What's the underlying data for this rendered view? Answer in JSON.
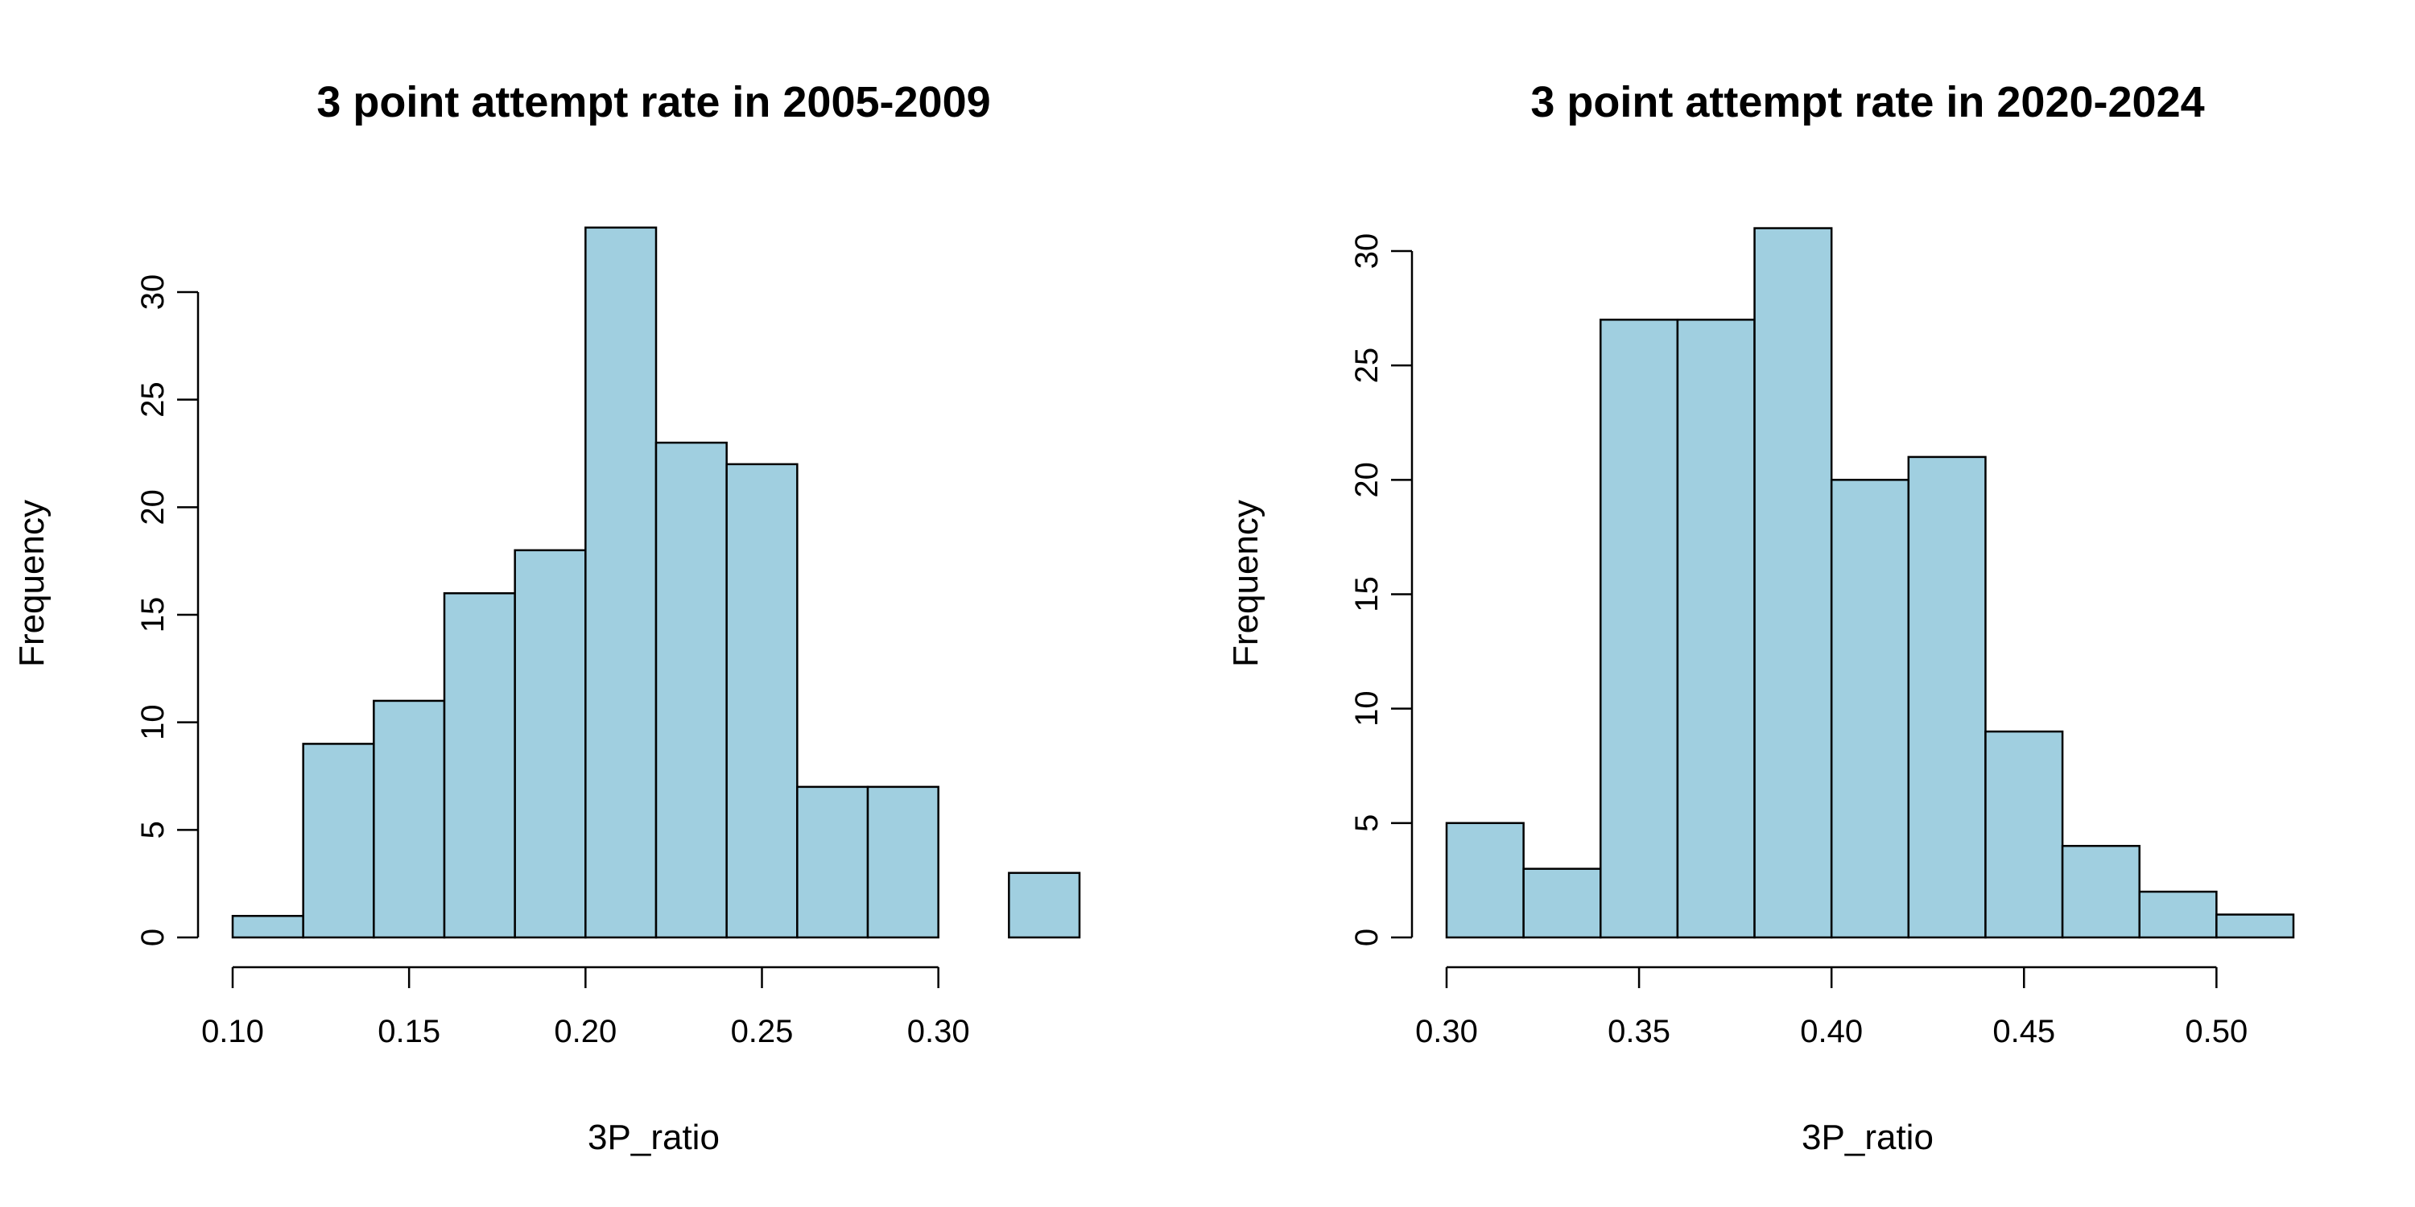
{
  "chart_data": [
    {
      "type": "histogram",
      "title": "3 point attempt rate in 2005-2009",
      "xlabel": "3P_ratio",
      "ylabel": "Frequency",
      "bar_color": "#A0CFE0",
      "bins": [
        {
          "start": 0.1,
          "end": 0.12,
          "count": 1
        },
        {
          "start": 0.12,
          "end": 0.14,
          "count": 9
        },
        {
          "start": 0.14,
          "end": 0.16,
          "count": 11
        },
        {
          "start": 0.16,
          "end": 0.18,
          "count": 16
        },
        {
          "start": 0.18,
          "end": 0.2,
          "count": 18
        },
        {
          "start": 0.2,
          "end": 0.22,
          "count": 33
        },
        {
          "start": 0.22,
          "end": 0.24,
          "count": 23
        },
        {
          "start": 0.24,
          "end": 0.26,
          "count": 22
        },
        {
          "start": 0.26,
          "end": 0.28,
          "count": 7
        },
        {
          "start": 0.28,
          "end": 0.3,
          "count": 7
        },
        {
          "start": 0.3,
          "end": 0.32,
          "count": 0
        },
        {
          "start": 0.32,
          "end": 0.34,
          "count": 3
        }
      ],
      "xlim": [
        0.1,
        0.34
      ],
      "ylim": [
        0,
        33
      ],
      "xticks": [
        0.1,
        0.15,
        0.2,
        0.25,
        0.3
      ],
      "xtick_labels": [
        "0.10",
        "0.15",
        "0.20",
        "0.25",
        "0.30"
      ],
      "yticks": [
        0,
        5,
        10,
        15,
        20,
        25,
        30
      ],
      "ytick_labels": [
        "0",
        "5",
        "10",
        "15",
        "20",
        "25",
        "30"
      ],
      "grid": false,
      "legend": "none"
    },
    {
      "type": "histogram",
      "title": "3 point attempt rate in 2020-2024",
      "xlabel": "3P_ratio",
      "ylabel": "Frequency",
      "bar_color": "#A0CFE0",
      "bins": [
        {
          "start": 0.3,
          "end": 0.32,
          "count": 5
        },
        {
          "start": 0.32,
          "end": 0.34,
          "count": 3
        },
        {
          "start": 0.34,
          "end": 0.36,
          "count": 27
        },
        {
          "start": 0.36,
          "end": 0.38,
          "count": 27
        },
        {
          "start": 0.38,
          "end": 0.4,
          "count": 31
        },
        {
          "start": 0.4,
          "end": 0.42,
          "count": 20
        },
        {
          "start": 0.42,
          "end": 0.44,
          "count": 21
        },
        {
          "start": 0.44,
          "end": 0.46,
          "count": 9
        },
        {
          "start": 0.46,
          "end": 0.48,
          "count": 4
        },
        {
          "start": 0.48,
          "end": 0.5,
          "count": 2
        },
        {
          "start": 0.5,
          "end": 0.52,
          "count": 1
        }
      ],
      "xlim": [
        0.3,
        0.52
      ],
      "ylim": [
        0,
        31
      ],
      "xticks": [
        0.3,
        0.35,
        0.4,
        0.45,
        0.5
      ],
      "xtick_labels": [
        "0.30",
        "0.35",
        "0.40",
        "0.45",
        "0.50"
      ],
      "yticks": [
        0,
        5,
        10,
        15,
        20,
        25,
        30
      ],
      "ytick_labels": [
        "0",
        "5",
        "10",
        "15",
        "20",
        "25",
        "30"
      ],
      "grid": false,
      "legend": "none"
    }
  ]
}
